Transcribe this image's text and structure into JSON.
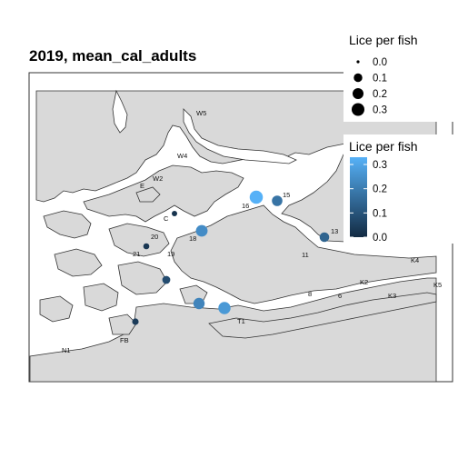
{
  "title": "2019, mean_cal_adults",
  "size_legend": {
    "title": "Lice per fish",
    "items": [
      {
        "label": "0.0",
        "value": 0.0
      },
      {
        "label": "0.1",
        "value": 0.1
      },
      {
        "label": "0.2",
        "value": 0.2
      },
      {
        "label": "0.3",
        "value": 0.3
      }
    ]
  },
  "color_legend": {
    "title": "Lice per fish",
    "ticks": [
      "0.3",
      "0.2",
      "0.1",
      "0.0"
    ],
    "low_color": "#132B43",
    "high_color": "#56B1F7"
  },
  "colors": {
    "land": "#d9d9d9",
    "water": "#ffffff",
    "coast": "#333333"
  },
  "site_labels": [
    "W5",
    "W4",
    "E",
    "W2",
    "C",
    "20",
    "21",
    "19",
    "18",
    "16",
    "15",
    "13",
    "11",
    "K4",
    "K2",
    "K5",
    "K3",
    "8",
    "6",
    "T1",
    "FB",
    "N1"
  ],
  "sites": [
    {
      "name": "16",
      "value": 0.33
    },
    {
      "name": "15",
      "value": 0.18
    },
    {
      "name": "18",
      "value": 0.24
    },
    {
      "name": "13",
      "value": 0.14
    },
    {
      "name": "C",
      "value": 0.02
    },
    {
      "name": "21",
      "value": 0.03
    },
    {
      "name": "19",
      "value": 0.08
    },
    {
      "name": "T1a",
      "value": 0.22
    },
    {
      "name": "T1b",
      "value": 0.27
    },
    {
      "name": "FB",
      "value": 0.04
    }
  ]
}
